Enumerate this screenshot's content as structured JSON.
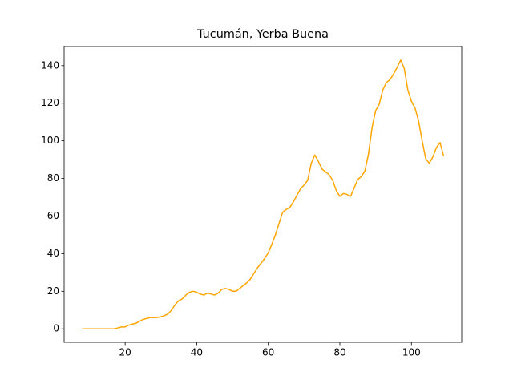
{
  "chart_data": {
    "type": "line",
    "title": "Tucumán, Yerba Buena",
    "x": [
      8,
      9,
      10,
      11,
      12,
      13,
      14,
      15,
      16,
      17,
      18,
      19,
      20,
      21,
      22,
      23,
      24,
      25,
      26,
      27,
      28,
      29,
      30,
      31,
      32,
      33,
      34,
      35,
      36,
      37,
      38,
      39,
      40,
      41,
      42,
      43,
      44,
      45,
      46,
      47,
      48,
      49,
      50,
      51,
      52,
      53,
      54,
      55,
      56,
      57,
      58,
      59,
      60,
      61,
      62,
      63,
      64,
      65,
      66,
      67,
      68,
      69,
      70,
      71,
      72,
      73,
      74,
      75,
      76,
      77,
      78,
      79,
      80,
      81,
      82,
      83,
      84,
      85,
      86,
      87,
      88,
      89,
      90,
      91,
      92,
      93,
      94,
      95,
      96,
      97,
      98,
      99,
      100,
      101,
      102,
      103,
      104,
      105,
      106,
      107,
      108,
      109
    ],
    "values": [
      0,
      0,
      0,
      0,
      0,
      0,
      0,
      0,
      0,
      0,
      0.5,
      1,
      1,
      2,
      2.5,
      3,
      4,
      5,
      5.5,
      6,
      6,
      6,
      6.5,
      7,
      8,
      10,
      13,
      15,
      16,
      18,
      19.5,
      20,
      19.5,
      18.5,
      18,
      19,
      18.5,
      18,
      19,
      21,
      21.5,
      21,
      20,
      20,
      21.5,
      23,
      24.5,
      26.5,
      29.5,
      32.5,
      35,
      37.5,
      40.5,
      45,
      50,
      56,
      62,
      63.5,
      64.5,
      67.5,
      71,
      74.5,
      76.5,
      79,
      88,
      92.5,
      89,
      85,
      83.5,
      82,
      79,
      73.5,
      70.5,
      72,
      71.5,
      70.5,
      75,
      79.5,
      81,
      84,
      93,
      107,
      116,
      119.5,
      127,
      131,
      132.5,
      135.5,
      139,
      143,
      138.5,
      127,
      121,
      117.5,
      110.5,
      100,
      90.5,
      88,
      91.5,
      96.5,
      99,
      92
    ],
    "color": "#ffa500",
    "xlim": [
      2.95,
      114.05
    ],
    "xticks": [
      20,
      40,
      60,
      80,
      100
    ],
    "ylim": [
      -7.15,
      150.15
    ],
    "yticks": [
      0,
      20,
      40,
      60,
      80,
      100,
      120,
      140
    ],
    "grid": false
  }
}
